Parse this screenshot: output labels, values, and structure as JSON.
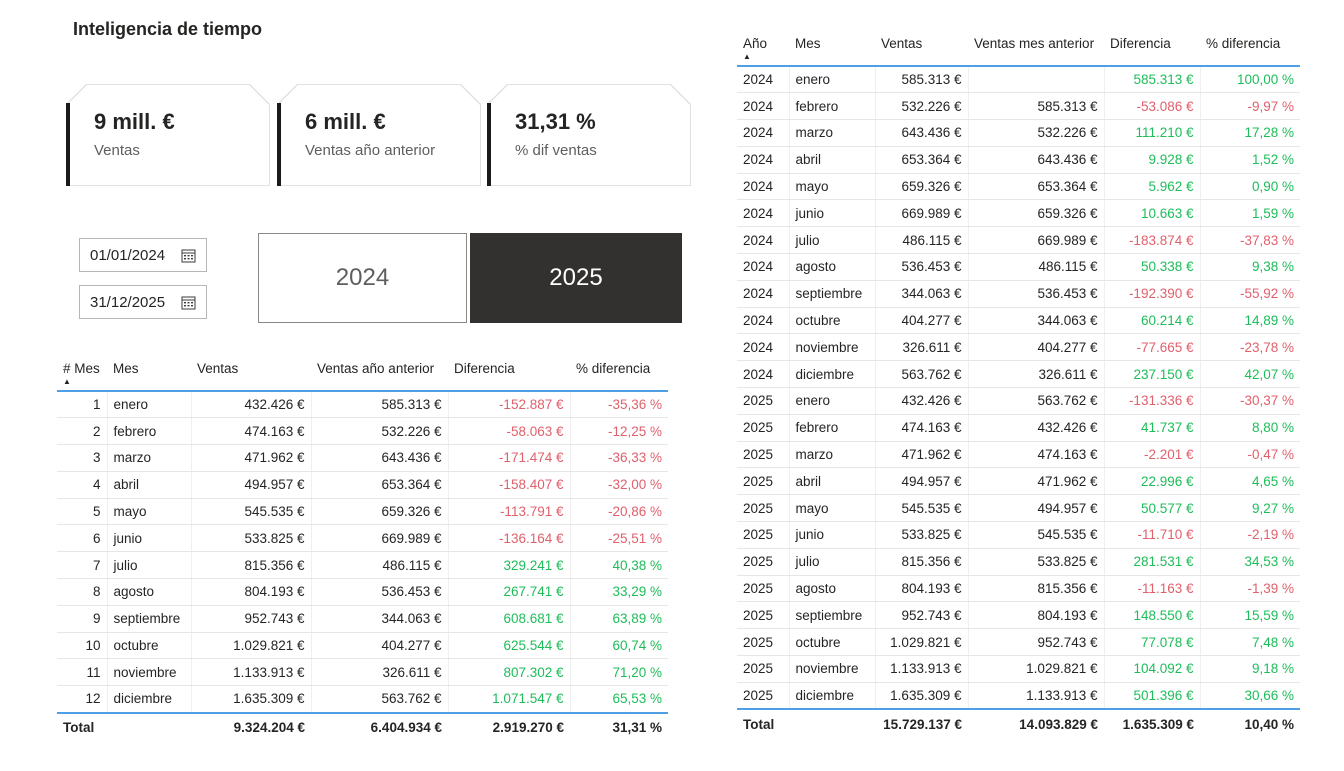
{
  "page": {
    "title": "Inteligencia de tiempo"
  },
  "kpi_cards": [
    {
      "value": "9 mill. €",
      "label": "Ventas"
    },
    {
      "value": "6 mill. €",
      "label": "Ventas año anterior"
    },
    {
      "value": "31,31 %",
      "label": "% dif ventas"
    }
  ],
  "filters": {
    "date_from": "01/01/2024",
    "date_to": "31/12/2025",
    "year_buttons": [
      {
        "label": "2024",
        "selected": false
      },
      {
        "label": "2025",
        "selected": true
      }
    ]
  },
  "colors": {
    "positive": "#1EBD5A",
    "negative": "#E0606C",
    "header_separator_blue": "#4D9FE6",
    "selected_button_bg": "#323130",
    "text_dark": "#252423",
    "text_gray": "#605E5C"
  },
  "monthly_table": {
    "columns": [
      "# Mes",
      "Mes",
      "Ventas",
      "Ventas año anterior",
      "Diferencia",
      "% diferencia"
    ],
    "sort_column": "# Mes",
    "sort_direction": "ascending",
    "rows": [
      [
        "1",
        "enero",
        "432.426 €",
        "585.313 €",
        "-152.887 €",
        "-35,36 %"
      ],
      [
        "2",
        "febrero",
        "474.163 €",
        "532.226 €",
        "-58.063 €",
        "-12,25 %"
      ],
      [
        "3",
        "marzo",
        "471.962 €",
        "643.436 €",
        "-171.474 €",
        "-36,33 %"
      ],
      [
        "4",
        "abril",
        "494.957 €",
        "653.364 €",
        "-158.407 €",
        "-32,00 %"
      ],
      [
        "5",
        "mayo",
        "545.535 €",
        "659.326 €",
        "-113.791 €",
        "-20,86 %"
      ],
      [
        "6",
        "junio",
        "533.825 €",
        "669.989 €",
        "-136.164 €",
        "-25,51 %"
      ],
      [
        "7",
        "julio",
        "815.356 €",
        "486.115 €",
        "329.241 €",
        "40,38 %"
      ],
      [
        "8",
        "agosto",
        "804.193 €",
        "536.453 €",
        "267.741 €",
        "33,29 %"
      ],
      [
        "9",
        "septiembre",
        "952.743 €",
        "344.063 €",
        "608.681 €",
        "63,89 %"
      ],
      [
        "10",
        "octubre",
        "1.029.821 €",
        "404.277 €",
        "625.544 €",
        "60,74 %"
      ],
      [
        "11",
        "noviembre",
        "1.133.913 €",
        "326.611 €",
        "807.302 €",
        "71,20 %"
      ],
      [
        "12",
        "diciembre",
        "1.635.309 €",
        "563.762 €",
        "1.071.547 €",
        "65,53 %"
      ]
    ],
    "total": [
      "Total",
      "",
      "9.324.204 €",
      "6.404.934 €",
      "2.919.270 €",
      "31,31 %"
    ]
  },
  "yearly_table": {
    "columns": [
      "Año",
      "Mes",
      "Ventas",
      "Ventas mes anterior",
      "Diferencia",
      "% diferencia"
    ],
    "sort_column": "Año",
    "sort_direction": "ascending",
    "rows": [
      [
        "2024",
        "enero",
        "585.313 €",
        "",
        "585.313 €",
        "100,00 %"
      ],
      [
        "2024",
        "febrero",
        "532.226 €",
        "585.313 €",
        "-53.086 €",
        "-9,97 %"
      ],
      [
        "2024",
        "marzo",
        "643.436 €",
        "532.226 €",
        "111.210 €",
        "17,28 %"
      ],
      [
        "2024",
        "abril",
        "653.364 €",
        "643.436 €",
        "9.928 €",
        "1,52 %"
      ],
      [
        "2024",
        "mayo",
        "659.326 €",
        "653.364 €",
        "5.962 €",
        "0,90 %"
      ],
      [
        "2024",
        "junio",
        "669.989 €",
        "659.326 €",
        "10.663 €",
        "1,59 %"
      ],
      [
        "2024",
        "julio",
        "486.115 €",
        "669.989 €",
        "-183.874 €",
        "-37,83 %"
      ],
      [
        "2024",
        "agosto",
        "536.453 €",
        "486.115 €",
        "50.338 €",
        "9,38 %"
      ],
      [
        "2024",
        "septiembre",
        "344.063 €",
        "536.453 €",
        "-192.390 €",
        "-55,92 %"
      ],
      [
        "2024",
        "octubre",
        "404.277 €",
        "344.063 €",
        "60.214 €",
        "14,89 %"
      ],
      [
        "2024",
        "noviembre",
        "326.611 €",
        "404.277 €",
        "-77.665 €",
        "-23,78 %"
      ],
      [
        "2024",
        "diciembre",
        "563.762 €",
        "326.611 €",
        "237.150 €",
        "42,07 %"
      ],
      [
        "2025",
        "enero",
        "432.426 €",
        "563.762 €",
        "-131.336 €",
        "-30,37 %"
      ],
      [
        "2025",
        "febrero",
        "474.163 €",
        "432.426 €",
        "41.737 €",
        "8,80 %"
      ],
      [
        "2025",
        "marzo",
        "471.962 €",
        "474.163 €",
        "-2.201 €",
        "-0,47 %"
      ],
      [
        "2025",
        "abril",
        "494.957 €",
        "471.962 €",
        "22.996 €",
        "4,65 %"
      ],
      [
        "2025",
        "mayo",
        "545.535 €",
        "494.957 €",
        "50.577 €",
        "9,27 %"
      ],
      [
        "2025",
        "junio",
        "533.825 €",
        "545.535 €",
        "-11.710 €",
        "-2,19 %"
      ],
      [
        "2025",
        "julio",
        "815.356 €",
        "533.825 €",
        "281.531 €",
        "34,53 %"
      ],
      [
        "2025",
        "agosto",
        "804.193 €",
        "815.356 €",
        "-11.163 €",
        "-1,39 %"
      ],
      [
        "2025",
        "septiembre",
        "952.743 €",
        "804.193 €",
        "148.550 €",
        "15,59 %"
      ],
      [
        "2025",
        "octubre",
        "1.029.821 €",
        "952.743 €",
        "77.078 €",
        "7,48 %"
      ],
      [
        "2025",
        "noviembre",
        "1.133.913 €",
        "1.029.821 €",
        "104.092 €",
        "9,18 %"
      ],
      [
        "2025",
        "diciembre",
        "1.635.309 €",
        "1.133.913 €",
        "501.396 €",
        "30,66 %"
      ]
    ],
    "total": [
      "Total",
      "",
      "15.729.137 €",
      "14.093.829 €",
      "1.635.309 €",
      "10,40 %"
    ]
  }
}
